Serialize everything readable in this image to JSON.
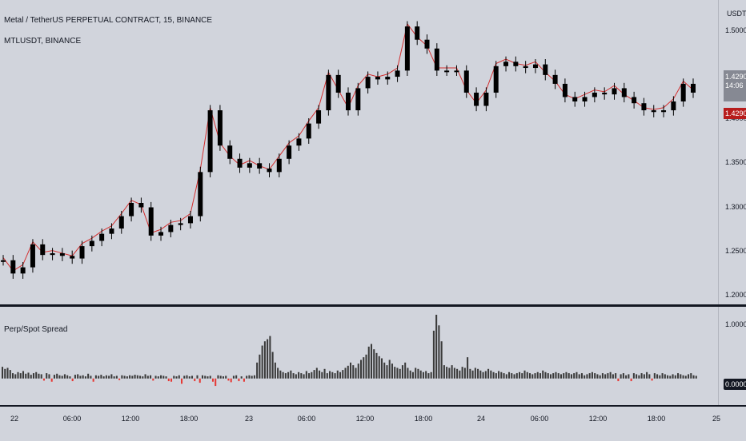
{
  "chart": {
    "title": "Metal / TetherUS PERPETUAL CONTRACT, 15, BINANCE",
    "subtitle": "MTLUSDT, BINANCE",
    "price_axis_unit": "USDT",
    "last_price": "1.4290",
    "countdown": "14:06",
    "indicator_name": "Perp/Spot Spread",
    "indicator_last": "0.0000",
    "colors": {
      "background": "#d1d4dc",
      "candle": "#000000",
      "perp_line": "#d32f2f",
      "hist_pos": "#3a3a3a",
      "hist_neg": "#e53935",
      "last_badge": "#b71c1c"
    }
  },
  "price_ticks": [
    "1.5000",
    "1.4500",
    "1.4000",
    "1.3500",
    "1.3000",
    "1.2500",
    "1.2000"
  ],
  "osc_ticks": [
    "1.0000"
  ],
  "time_ticks": [
    "22",
    "06:00",
    "12:00",
    "18:00",
    "23",
    "06:00",
    "12:00",
    "18:00",
    "24",
    "06:00",
    "12:00",
    "18:00",
    "25"
  ],
  "chart_data": [
    {
      "type": "line",
      "title": "Metal / TetherUS PERPETUAL CONTRACT, 15, BINANCE",
      "ylabel": "USDT",
      "ylim": [
        1.19,
        1.535
      ],
      "x": [
        "22 00:00",
        "22 01:00",
        "22 02:00",
        "22 03:00",
        "22 04:00",
        "22 05:00",
        "22 06:00",
        "22 07:00",
        "22 08:00",
        "22 09:00",
        "22 10:00",
        "22 11:00",
        "22 12:00",
        "22 13:00",
        "22 14:00",
        "22 15:00",
        "22 16:00",
        "22 17:00",
        "22 18:00",
        "22 19:00",
        "22 20:00",
        "22 21:00",
        "22 22:00",
        "22 23:00",
        "23 00:00",
        "23 01:00",
        "23 02:00",
        "23 03:00",
        "23 04:00",
        "23 05:00",
        "23 06:00",
        "23 07:00",
        "23 08:00",
        "23 09:00",
        "23 10:00",
        "23 11:00",
        "23 12:00",
        "23 13:00",
        "23 14:00",
        "23 15:00",
        "23 16:00",
        "23 17:00",
        "23 18:00",
        "23 19:00",
        "23 20:00",
        "23 21:00",
        "23 22:00",
        "23 23:00",
        "24 00:00",
        "24 01:00",
        "24 02:00",
        "24 03:00",
        "24 04:00",
        "24 05:00",
        "24 06:00",
        "24 07:00",
        "24 08:00",
        "24 09:00",
        "24 10:00",
        "24 11:00",
        "24 12:00",
        "24 13:00",
        "24 14:00",
        "24 15:00",
        "24 16:00",
        "24 17:00",
        "24 18:00",
        "24 19:00",
        "24 20:00",
        "24 21:00",
        "24 22:00"
      ],
      "series": [
        {
          "values": [
            1.24,
            1.225,
            1.232,
            1.258,
            1.246,
            1.248,
            1.245,
            1.242,
            1.256,
            1.262,
            1.27,
            1.276,
            1.29,
            1.305,
            1.3,
            1.268,
            1.272,
            1.28,
            1.282,
            1.29,
            1.34,
            1.41,
            1.37,
            1.355,
            1.345,
            1.35,
            1.344,
            1.34,
            1.355,
            1.37,
            1.378,
            1.395,
            1.41,
            1.45,
            1.43,
            1.41,
            1.435,
            1.448,
            1.445,
            1.448,
            1.455,
            1.505,
            1.49,
            1.48,
            1.455,
            1.455,
            1.455,
            1.43,
            1.415,
            1.43,
            1.46,
            1.465,
            1.46,
            1.458,
            1.462,
            1.45,
            1.44,
            1.425,
            1.42,
            1.425,
            1.43,
            1.428,
            1.435,
            1.425,
            1.418,
            1.41,
            1.408,
            1.41,
            1.42,
            1.44,
            1.43
          ]
        }
      ]
    },
    {
      "type": "bar",
      "title": "Perp/Spot Spread",
      "ylim": [
        -0.5,
        1.35
      ],
      "values": [
        0.22,
        0.18,
        0.2,
        0.16,
        0.1,
        0.08,
        0.12,
        0.1,
        0.14,
        0.09,
        0.11,
        0.07,
        0.1,
        0.12,
        0.09,
        0.08,
        -0.04,
        0.1,
        0.08,
        -0.06,
        0.07,
        0.09,
        0.06,
        0.05,
        0.08,
        0.06,
        0.04,
        -0.05,
        0.07,
        0.08,
        0.05,
        0.06,
        0.04,
        0.09,
        0.05,
        -0.06,
        0.06,
        0.05,
        0.07,
        0.04,
        0.06,
        0.05,
        0.08,
        0.04,
        0.05,
        -0.03,
        0.06,
        0.05,
        0.04,
        0.06,
        0.05,
        0.07,
        0.06,
        0.05,
        0.04,
        0.08,
        0.05,
        0.06,
        -0.04,
        0.05,
        0.04,
        0.06,
        0.05,
        0.04,
        -0.05,
        -0.06,
        0.05,
        0.04,
        0.06,
        -0.1,
        0.05,
        0.06,
        0.04,
        0.05,
        -0.05,
        0.06,
        -0.08,
        0.06,
        0.05,
        0.04,
        0.05,
        -0.06,
        -0.14,
        0.06,
        0.05,
        0.04,
        0.05,
        -0.04,
        -0.07,
        0.05,
        0.06,
        -0.05,
        0.04,
        -0.06,
        0.05,
        0.06,
        0.05,
        0.06,
        0.3,
        0.45,
        0.62,
        0.7,
        0.74,
        0.8,
        0.5,
        0.3,
        0.2,
        0.15,
        0.12,
        0.1,
        0.12,
        0.15,
        0.1,
        0.08,
        0.12,
        0.1,
        0.08,
        0.14,
        0.1,
        0.12,
        0.16,
        0.2,
        0.15,
        0.12,
        0.18,
        0.1,
        0.14,
        0.12,
        0.1,
        0.15,
        0.12,
        0.16,
        0.2,
        0.24,
        0.3,
        0.25,
        0.2,
        0.28,
        0.35,
        0.4,
        0.45,
        0.6,
        0.65,
        0.55,
        0.48,
        0.42,
        0.38,
        0.3,
        0.25,
        0.35,
        0.28,
        0.22,
        0.2,
        0.18,
        0.25,
        0.3,
        0.2,
        0.15,
        0.12,
        0.2,
        0.18,
        0.15,
        0.12,
        0.14,
        0.1,
        0.12,
        0.9,
        1.2,
        1.0,
        0.7,
        0.25,
        0.22,
        0.2,
        0.25,
        0.2,
        0.18,
        0.15,
        0.22,
        0.2,
        0.4,
        0.18,
        0.15,
        0.2,
        0.18,
        0.15,
        0.12,
        0.14,
        0.18,
        0.15,
        0.12,
        0.1,
        0.14,
        0.12,
        0.1,
        0.08,
        0.12,
        0.1,
        0.08,
        0.1,
        0.12,
        0.1,
        0.15,
        0.12,
        0.1,
        0.08,
        0.1,
        0.12,
        0.1,
        0.15,
        0.12,
        0.1,
        0.08,
        0.1,
        0.12,
        0.1,
        0.08,
        0.1,
        0.12,
        0.1,
        0.08,
        0.1,
        0.12,
        0.08,
        0.1,
        0.06,
        0.08,
        0.1,
        0.12,
        0.1,
        0.08,
        0.06,
        0.1,
        0.08,
        0.1,
        0.12,
        0.08,
        0.1,
        -0.05,
        0.08,
        0.1,
        0.06,
        0.08,
        -0.05,
        0.1,
        0.08,
        0.06,
        0.1,
        0.08,
        0.12,
        0.08,
        -0.04,
        0.1,
        0.08,
        0.06,
        0.1,
        0.08,
        0.06,
        0.05,
        0.08,
        0.06,
        0.1,
        0.08,
        0.06,
        0.05,
        0.08,
        0.1,
        0.06,
        0.05
      ]
    }
  ]
}
